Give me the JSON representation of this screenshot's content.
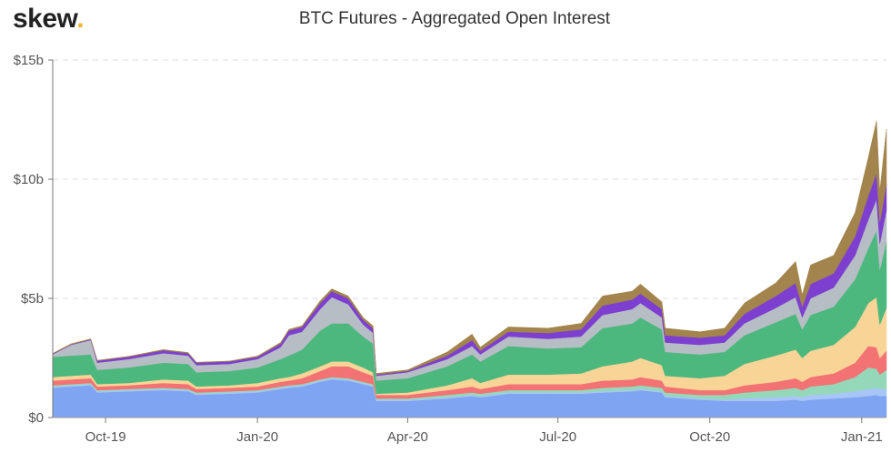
{
  "logo": {
    "text": "skew",
    "dot": "."
  },
  "chart_data": {
    "type": "area",
    "stacked": true,
    "title": "BTC Futures - Aggregated Open Interest",
    "xlabel": "",
    "ylabel": "",
    "ylim": [
      0,
      15
    ],
    "y_ticks": [
      0,
      5,
      10,
      15
    ],
    "y_tick_labels": [
      "$0",
      "$5b",
      "$10b",
      "$15b"
    ],
    "x_range": [
      "2019-08-30",
      "2021-01-16"
    ],
    "x_ticks": [
      "2019-10-01",
      "2020-01-01",
      "2020-04-01",
      "2020-07-01",
      "2020-10-01",
      "2021-01-01"
    ],
    "x_tick_labels": [
      "Oct-19",
      "Jan-20",
      "Apr-20",
      "Jul-20",
      "Oct-20",
      "Jan-21"
    ],
    "grid": "horizontal dashed",
    "legend": "none",
    "units": "USD billions",
    "colors": [
      "#7fa4f2",
      "#a8c5f7",
      "#95d8b9",
      "#f37274",
      "#f8d597",
      "#4db87e",
      "#b6bdc5",
      "#7d3fcf",
      "#a2844c"
    ],
    "x": [
      "2019-08-30",
      "2019-09-10",
      "2019-09-22",
      "2019-09-26",
      "2019-10-15",
      "2019-11-05",
      "2019-11-20",
      "2019-11-25",
      "2019-12-15",
      "2020-01-01",
      "2020-01-15",
      "2020-01-20",
      "2020-01-28",
      "2020-02-08",
      "2020-02-15",
      "2020-02-25",
      "2020-03-05",
      "2020-03-11",
      "2020-03-13",
      "2020-04-01",
      "2020-04-25",
      "2020-05-10",
      "2020-05-15",
      "2020-06-01",
      "2020-06-25",
      "2020-07-15",
      "2020-07-28",
      "2020-08-15",
      "2020-08-20",
      "2020-09-02",
      "2020-09-04",
      "2020-09-25",
      "2020-10-10",
      "2020-10-22",
      "2020-11-10",
      "2020-11-22",
      "2020-11-26",
      "2020-12-01",
      "2020-12-15",
      "2020-12-28",
      "2021-01-05",
      "2021-01-10",
      "2021-01-12",
      "2021-01-16"
    ],
    "series": [
      {
        "values": [
          1.25,
          1.3,
          1.35,
          1.05,
          1.1,
          1.15,
          1.1,
          0.95,
          1.0,
          1.05,
          1.2,
          1.25,
          1.3,
          1.5,
          1.6,
          1.55,
          1.4,
          1.3,
          0.7,
          0.7,
          0.8,
          0.9,
          0.85,
          1.0,
          1.0,
          1.0,
          1.05,
          1.1,
          1.15,
          1.05,
          0.85,
          0.75,
          0.7,
          0.7,
          0.7,
          0.75,
          0.7,
          0.75,
          0.8,
          0.85,
          0.9,
          0.95,
          0.9,
          0.9
        ]
      },
      {
        "values": [
          0.05,
          0.05,
          0.05,
          0.05,
          0.05,
          0.05,
          0.05,
          0.05,
          0.05,
          0.05,
          0.05,
          0.05,
          0.05,
          0.05,
          0.05,
          0.05,
          0.05,
          0.05,
          0.05,
          0.05,
          0.05,
          0.05,
          0.05,
          0.05,
          0.05,
          0.05,
          0.05,
          0.05,
          0.05,
          0.05,
          0.05,
          0.05,
          0.05,
          0.1,
          0.15,
          0.15,
          0.15,
          0.2,
          0.2,
          0.25,
          0.3,
          0.3,
          0.3,
          0.3
        ]
      },
      {
        "values": [
          0.05,
          0.05,
          0.05,
          0.05,
          0.05,
          0.05,
          0.05,
          0.05,
          0.05,
          0.05,
          0.05,
          0.05,
          0.05,
          0.05,
          0.05,
          0.05,
          0.05,
          0.05,
          0.05,
          0.05,
          0.1,
          0.1,
          0.1,
          0.1,
          0.1,
          0.1,
          0.15,
          0.15,
          0.15,
          0.15,
          0.15,
          0.15,
          0.2,
          0.25,
          0.3,
          0.35,
          0.3,
          0.35,
          0.4,
          0.6,
          0.9,
          0.8,
          0.6,
          0.8
        ]
      },
      {
        "values": [
          0.2,
          0.2,
          0.2,
          0.15,
          0.15,
          0.2,
          0.2,
          0.15,
          0.15,
          0.15,
          0.2,
          0.2,
          0.25,
          0.35,
          0.45,
          0.5,
          0.4,
          0.35,
          0.15,
          0.15,
          0.2,
          0.25,
          0.2,
          0.25,
          0.25,
          0.25,
          0.3,
          0.3,
          0.35,
          0.3,
          0.25,
          0.2,
          0.2,
          0.3,
          0.35,
          0.4,
          0.35,
          0.4,
          0.45,
          0.6,
          0.9,
          0.9,
          0.7,
          0.8
        ]
      },
      {
        "values": [
          0.15,
          0.15,
          0.15,
          0.1,
          0.1,
          0.15,
          0.15,
          0.1,
          0.1,
          0.15,
          0.15,
          0.15,
          0.2,
          0.2,
          0.2,
          0.2,
          0.2,
          0.15,
          0.05,
          0.1,
          0.2,
          0.35,
          0.25,
          0.4,
          0.4,
          0.45,
          0.6,
          0.75,
          0.8,
          0.65,
          0.45,
          0.5,
          0.6,
          0.9,
          1.1,
          1.2,
          1.0,
          1.1,
          1.2,
          1.5,
          1.8,
          2.1,
          1.4,
          1.8
        ]
      },
      {
        "values": [
          0.85,
          0.85,
          0.85,
          0.6,
          0.65,
          0.7,
          0.7,
          0.6,
          0.6,
          0.65,
          0.8,
          0.9,
          1.0,
          1.5,
          1.6,
          1.6,
          1.3,
          1.2,
          0.55,
          0.6,
          0.8,
          1.0,
          0.9,
          1.2,
          1.1,
          1.1,
          1.6,
          1.6,
          1.7,
          1.5,
          1.0,
          1.0,
          1.0,
          1.2,
          1.4,
          1.5,
          1.2,
          1.5,
          1.6,
          2.0,
          2.3,
          2.8,
          2.3,
          2.8
        ]
      },
      {
        "values": [
          0.1,
          0.45,
          0.6,
          0.3,
          0.35,
          0.4,
          0.35,
          0.3,
          0.3,
          0.35,
          0.5,
          0.85,
          0.75,
          0.9,
          1.1,
          0.8,
          0.5,
          0.45,
          0.2,
          0.25,
          0.3,
          0.35,
          0.3,
          0.4,
          0.4,
          0.45,
          0.55,
          0.6,
          0.6,
          0.5,
          0.4,
          0.4,
          0.4,
          0.5,
          0.6,
          0.7,
          0.5,
          0.7,
          0.8,
          1.0,
          1.2,
          1.3,
          1.1,
          1.3
        ]
      },
      {
        "values": [
          0.02,
          0.02,
          0.03,
          0.08,
          0.1,
          0.12,
          0.1,
          0.1,
          0.1,
          0.1,
          0.15,
          0.2,
          0.2,
          0.25,
          0.25,
          0.25,
          0.2,
          0.2,
          0.05,
          0.05,
          0.15,
          0.25,
          0.15,
          0.2,
          0.25,
          0.3,
          0.4,
          0.4,
          0.4,
          0.35,
          0.3,
          0.3,
          0.3,
          0.4,
          0.5,
          0.6,
          0.45,
          0.6,
          0.6,
          0.8,
          1.0,
          1.1,
          0.9,
          1.1
        ]
      },
      {
        "values": [
          0.02,
          0.02,
          0.02,
          0.02,
          0.02,
          0.03,
          0.03,
          0.02,
          0.02,
          0.03,
          0.05,
          0.05,
          0.05,
          0.1,
          0.1,
          0.1,
          0.1,
          0.1,
          0.05,
          0.05,
          0.15,
          0.25,
          0.15,
          0.2,
          0.2,
          0.25,
          0.4,
          0.35,
          0.4,
          0.3,
          0.3,
          0.25,
          0.3,
          0.45,
          0.55,
          0.9,
          0.5,
          0.8,
          0.75,
          1.0,
          1.6,
          2.2,
          1.3,
          2.3
        ]
      }
    ]
  }
}
